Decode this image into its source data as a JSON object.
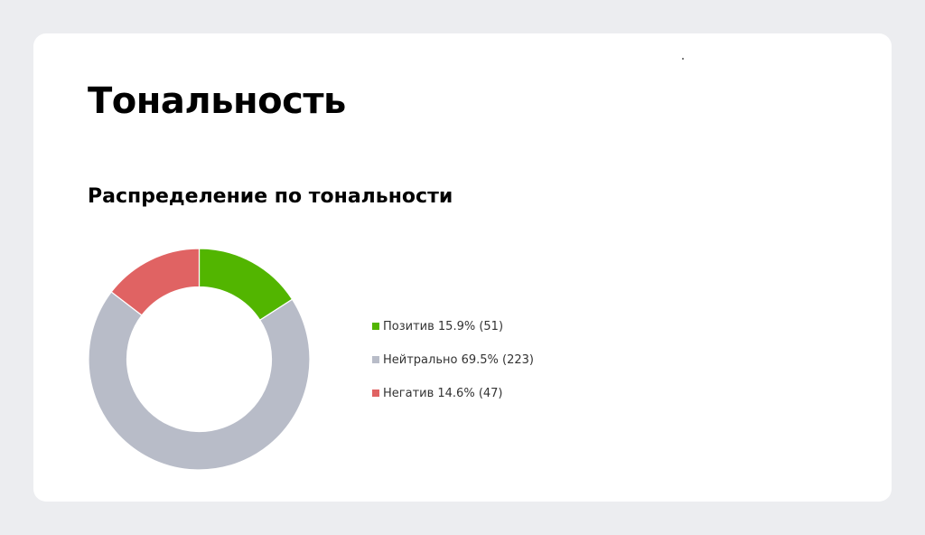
{
  "page": {
    "title": "Тональность",
    "section_title": "Распределение по тональности"
  },
  "chart_data": {
    "type": "pie",
    "donut": true,
    "title": "Распределение по тональности",
    "series": [
      {
        "name": "Позитив",
        "percent": 15.9,
        "count": 51,
        "color": "#52b500",
        "label": "Позитив 15.9% (51)"
      },
      {
        "name": "Нейтрально",
        "percent": 69.5,
        "count": 223,
        "color": "#b8bcc8",
        "label": "Нейтрально 69.5% (223)"
      },
      {
        "name": "Негатив",
        "percent": 14.6,
        "count": 47,
        "color": "#e06363",
        "label": "Негатив 14.6% (47)"
      }
    ],
    "legend_position": "right"
  }
}
